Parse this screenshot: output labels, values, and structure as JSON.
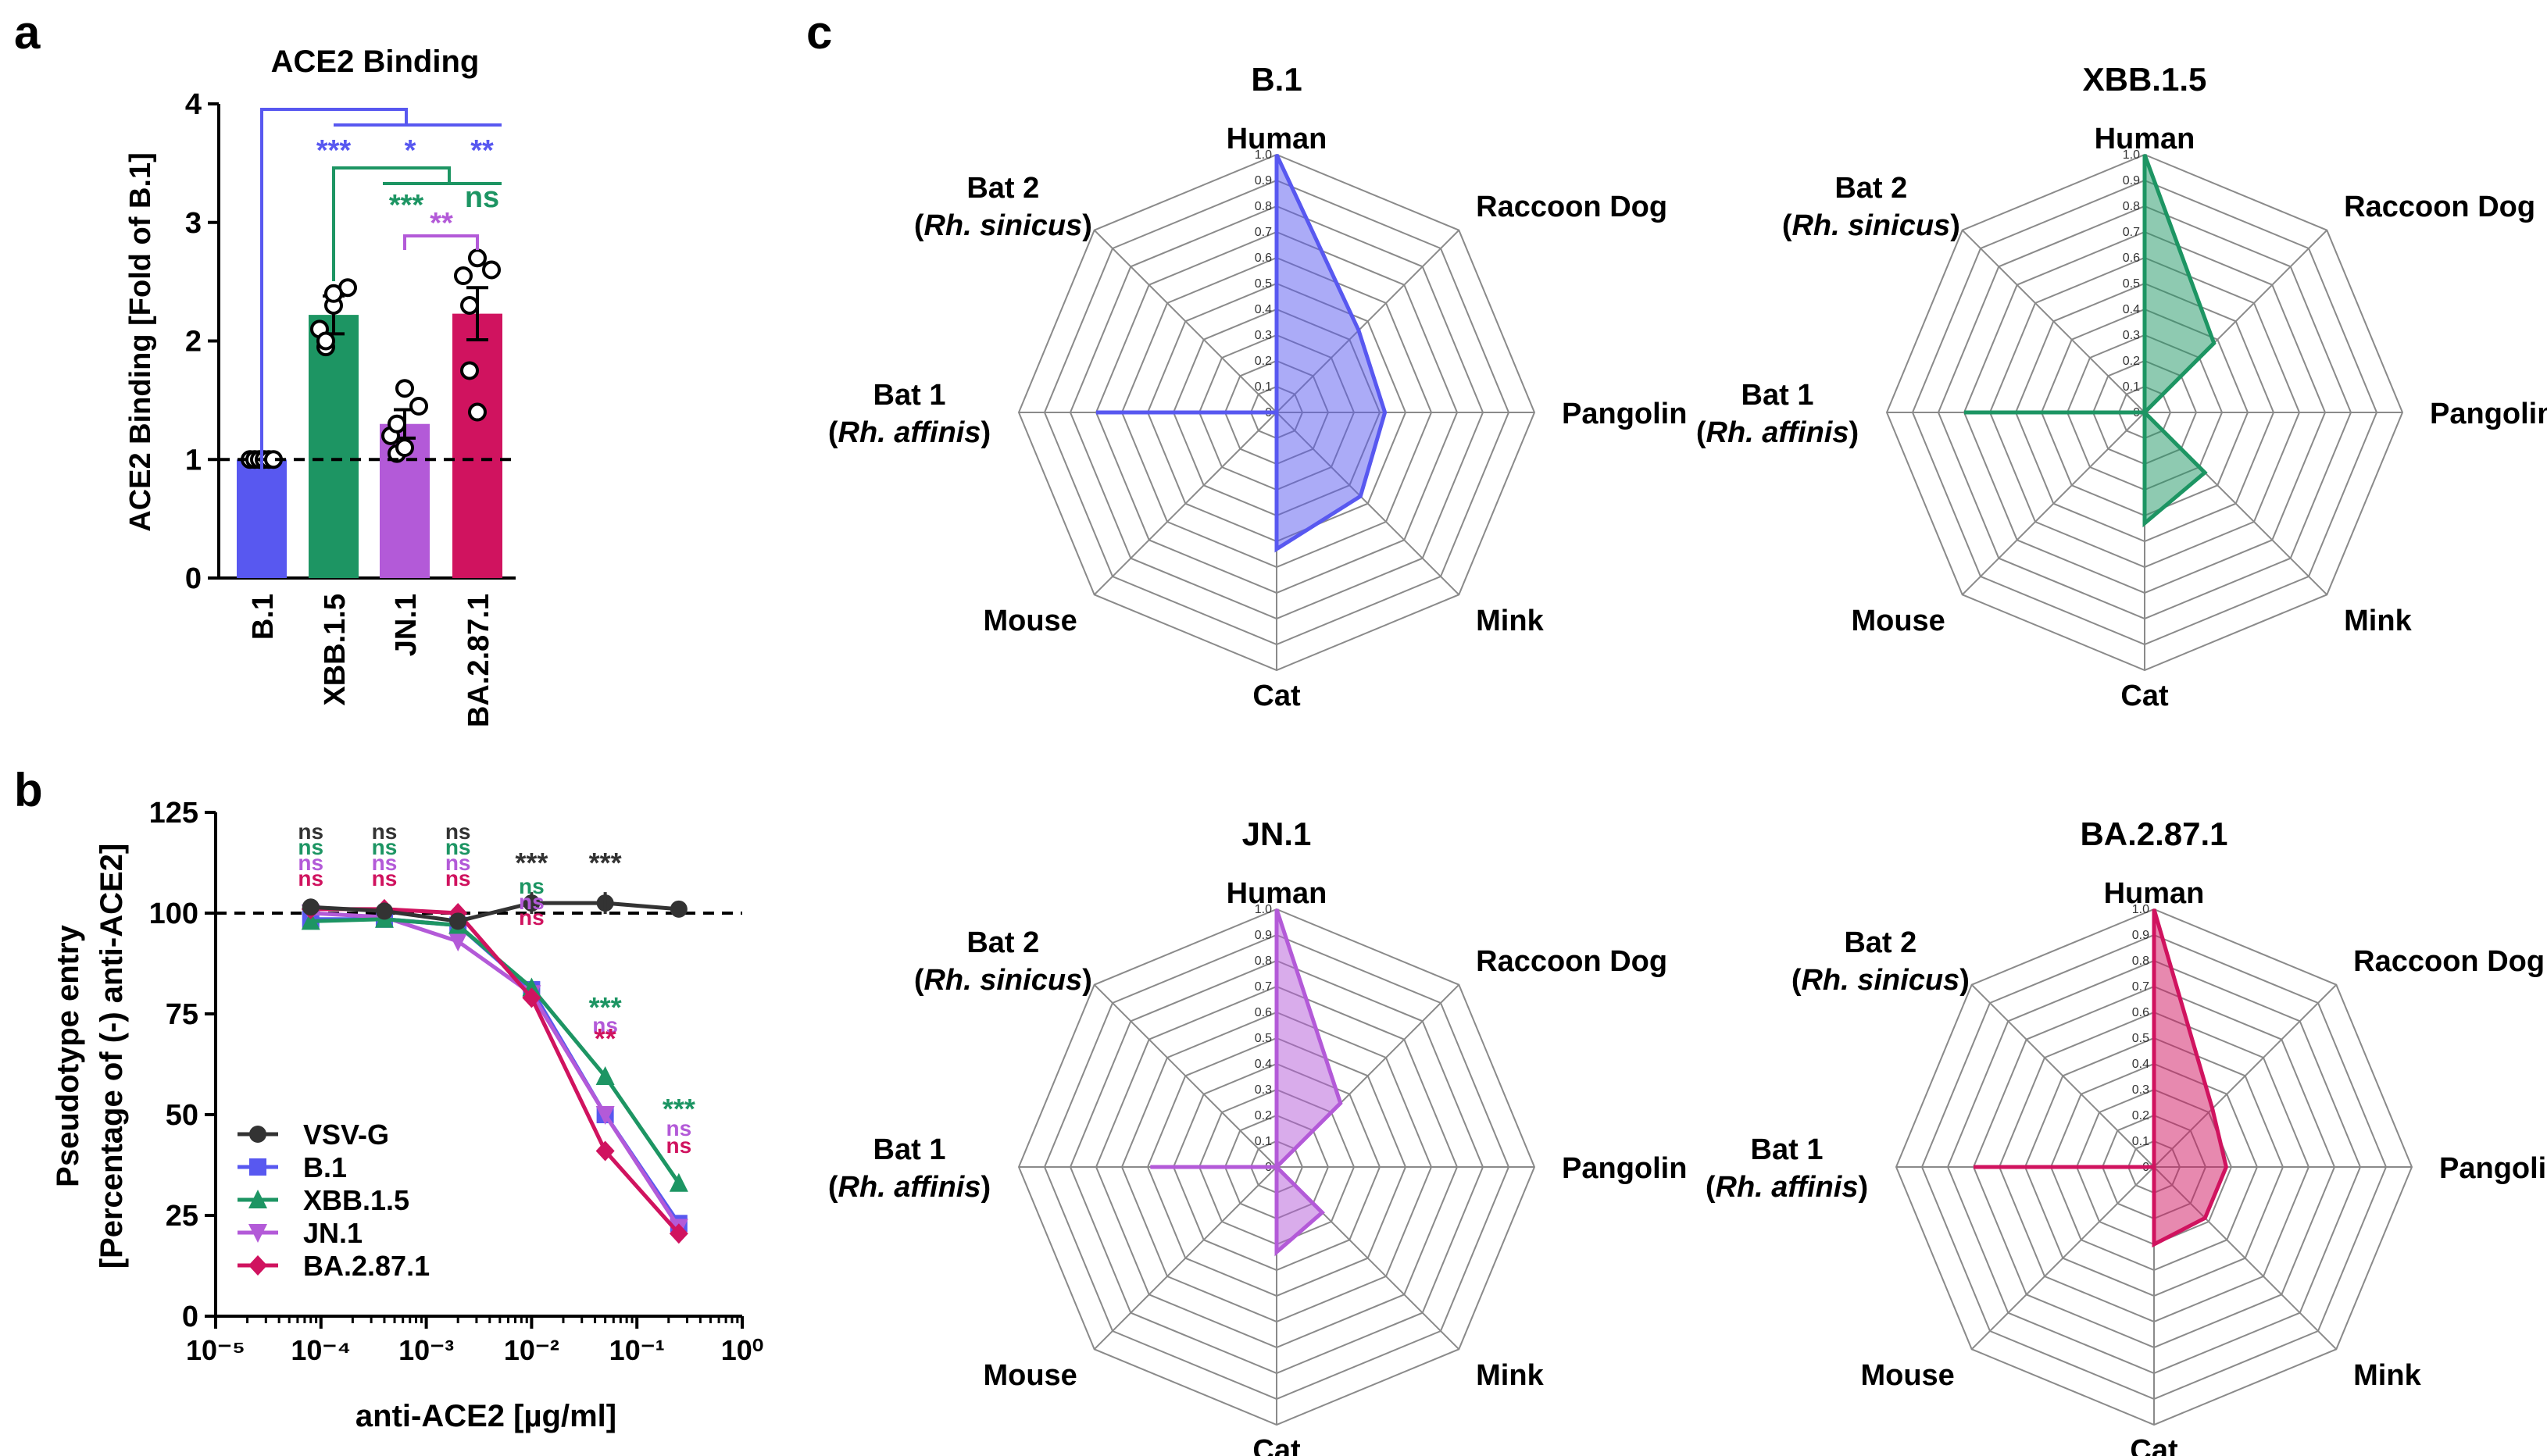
{
  "colors": {
    "B.1": "#5858f0",
    "XBB.1.5": "#1d9563",
    "JN.1": "#b35ad8",
    "BA.2.87.1": "#d0135f",
    "VSV-G": "#333333"
  },
  "panel_letters": [
    "a",
    "b",
    "c"
  ],
  "chart_data": [
    {
      "type": "bar",
      "panel": "a",
      "title": "ACE2 Binding",
      "ylabel": "ACE2 Binding [Fold of B.1]",
      "xlabel": "",
      "categories": [
        "B.1",
        "XBB.1.5",
        "JN.1",
        "BA.2.87.1"
      ],
      "values": [
        1.0,
        2.22,
        1.3,
        2.23
      ],
      "sem": [
        0.01,
        0.16,
        0.12,
        0.22
      ],
      "points": [
        [
          1.0,
          1.0,
          1.0,
          1.0,
          1.0,
          1.0
        ],
        [
          2.45,
          2.3,
          2.1,
          1.95,
          2.0,
          2.4
        ],
        [
          1.45,
          1.6,
          1.2,
          1.05,
          1.3,
          1.1
        ],
        [
          2.6,
          2.7,
          2.55,
          2.3,
          1.75,
          1.4
        ]
      ],
      "ylim": [
        0,
        4
      ],
      "yticks": [
        0,
        1,
        2,
        3,
        4
      ],
      "reference_line": 1,
      "significance": [
        {
          "label": "***",
          "color": "B.1"
        },
        {
          "label": "*",
          "color": "B.1"
        },
        {
          "label": "**",
          "color": "B.1"
        },
        {
          "label": "***",
          "color": "XBB.1.5"
        },
        {
          "label": "ns",
          "color": "XBB.1.5"
        },
        {
          "label": "**",
          "color": "JN.1"
        }
      ]
    },
    {
      "type": "line",
      "panel": "b",
      "ylabel": "Pseudotype entry",
      "ylabel2": "[Percentage of (-) anti-ACE2]",
      "xlabel": "anti-ACE2 [µg/ml]",
      "xscale": "log",
      "xlim": [
        1e-05,
        1
      ],
      "ylim": [
        0,
        125
      ],
      "yticks": [
        0,
        25,
        50,
        75,
        100,
        125
      ],
      "xticks": [
        "10⁻⁵",
        "10⁻⁴",
        "10⁻³",
        "10⁻²",
        "10⁻¹",
        "10⁰"
      ],
      "x": [
        8e-05,
        0.0004,
        0.002,
        0.01,
        0.05,
        0.25
      ],
      "reference_line": 100,
      "legend_position": "bottom-left",
      "series": [
        {
          "name": "VSV-G",
          "marker": "circle",
          "values": [
            101.5,
            100.5,
            98,
            102.5,
            102.5,
            101
          ]
        },
        {
          "name": "B.1",
          "marker": "square",
          "values": [
            98.5,
            98.5,
            97,
            81,
            50,
            23
          ]
        },
        {
          "name": "XBB.1.5",
          "marker": "triangle-up",
          "values": [
            98,
            98.5,
            97,
            81.5,
            59.5,
            33
          ]
        },
        {
          "name": "JN.1",
          "marker": "triangle-down",
          "values": [
            100,
            99,
            93,
            80,
            50,
            22
          ]
        },
        {
          "name": "BA.2.87.1",
          "marker": "diamond",
          "values": [
            101,
            101,
            100,
            79,
            41,
            20.5
          ]
        }
      ],
      "significance_columns": [
        {
          "labels": [
            [
              "ns",
              "VSV-G"
            ],
            [
              "ns",
              "XBB.1.5"
            ],
            [
              "ns",
              "JN.1"
            ],
            [
              "ns",
              "BA.2.87.1"
            ]
          ]
        },
        {
          "labels": [
            [
              "ns",
              "VSV-G"
            ],
            [
              "ns",
              "XBB.1.5"
            ],
            [
              "ns",
              "JN.1"
            ],
            [
              "ns",
              "BA.2.87.1"
            ]
          ]
        },
        {
          "labels": [
            [
              "ns",
              "VSV-G"
            ],
            [
              "ns",
              "XBB.1.5"
            ],
            [
              "ns",
              "JN.1"
            ],
            [
              "ns",
              "BA.2.87.1"
            ]
          ]
        },
        {
          "labels": [
            [
              "***",
              "VSV-G"
            ],
            [
              "ns",
              "XBB.1.5"
            ],
            [
              "ns",
              "JN.1"
            ],
            [
              "ns",
              "BA.2.87.1"
            ]
          ]
        },
        {
          "labels": [
            [
              "***",
              "VSV-G"
            ],
            [
              "***",
              "XBB.1.5"
            ],
            [
              "ns",
              "JN.1"
            ],
            [
              "**",
              "BA.2.87.1"
            ]
          ]
        },
        {
          "labels": [
            [
              "***",
              "XBB.1.5"
            ],
            [
              "ns",
              "JN.1"
            ],
            [
              "ns",
              "BA.2.87.1"
            ]
          ]
        }
      ]
    },
    {
      "type": "radar",
      "panel": "c",
      "axes": [
        "Human",
        "Raccoon Dog",
        "Pangolin",
        "Mink",
        "Cat",
        "Mouse",
        "Bat 1 (Rh. affinis)",
        "Bat 2 (Rh. sinicus)"
      ],
      "axis_labels": [
        {
          "line1": "Human"
        },
        {
          "line1": "Raccoon Dog"
        },
        {
          "line1": "Pangolin"
        },
        {
          "line1": "Mink"
        },
        {
          "line1": "Cat"
        },
        {
          "line1": "Mouse"
        },
        {
          "line1": "Bat 1",
          "line2": "(Rh. affinis)"
        },
        {
          "line1": "Bat 2",
          "line2": "(Rh. sinicus)"
        }
      ],
      "rlim": [
        0,
        1.0
      ],
      "rticks": [
        "0",
        "0.1",
        "0.2",
        "0.3",
        "0.4",
        "0.5",
        "0.6",
        "0.7",
        "0.8",
        "0.9",
        "1.0"
      ],
      "charts": [
        {
          "title": "B.1",
          "values": [
            1.0,
            0.45,
            0.42,
            0.46,
            0.53,
            0.0,
            0.7,
            0.0
          ]
        },
        {
          "title": "XBB.1.5",
          "values": [
            1.0,
            0.38,
            0.0,
            0.33,
            0.43,
            0.0,
            0.7,
            0.0
          ]
        },
        {
          "title": "JN.1",
          "values": [
            1.0,
            0.35,
            0.0,
            0.25,
            0.33,
            0.0,
            0.49,
            0.0
          ]
        },
        {
          "title": "BA.2.87.1",
          "values": [
            1.0,
            0.32,
            0.28,
            0.28,
            0.3,
            0.0,
            0.7,
            0.0
          ]
        }
      ]
    }
  ]
}
